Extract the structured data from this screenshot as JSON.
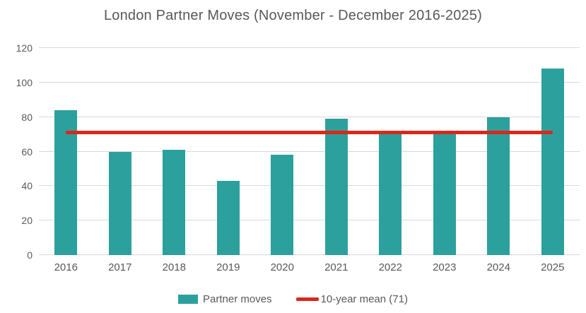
{
  "title": "London Partner Moves (November - December 2016-2025)",
  "colors": {
    "bar": "#2ca09c",
    "mean_line": "#d7291c",
    "text": "#595959",
    "gridline": "#d9d9d9"
  },
  "legend": {
    "items": [
      {
        "label": "Partner moves",
        "swatch": "bar-swatch"
      },
      {
        "label": "10-year mean (71)",
        "swatch": "line-swatch"
      }
    ],
    "position": "bottom"
  },
  "chart_data": {
    "type": "bar",
    "title": "London Partner Moves (November - December 2016-2025)",
    "categories": [
      "2016",
      "2017",
      "2018",
      "2019",
      "2020",
      "2021",
      "2022",
      "2023",
      "2024",
      "2025"
    ],
    "series": [
      {
        "name": "Partner moves",
        "values": [
          84,
          60,
          61,
          43,
          58,
          79,
          70,
          70,
          80,
          108
        ]
      }
    ],
    "mean_line": {
      "name": "10-year mean (71)",
      "value": 71
    },
    "xlabel": "",
    "ylabel": "",
    "ylim": [
      0,
      120
    ],
    "ytick_step": 20,
    "yticks": [
      0,
      20,
      40,
      60,
      80,
      100,
      120
    ],
    "grid": true,
    "legend_position": "bottom"
  }
}
